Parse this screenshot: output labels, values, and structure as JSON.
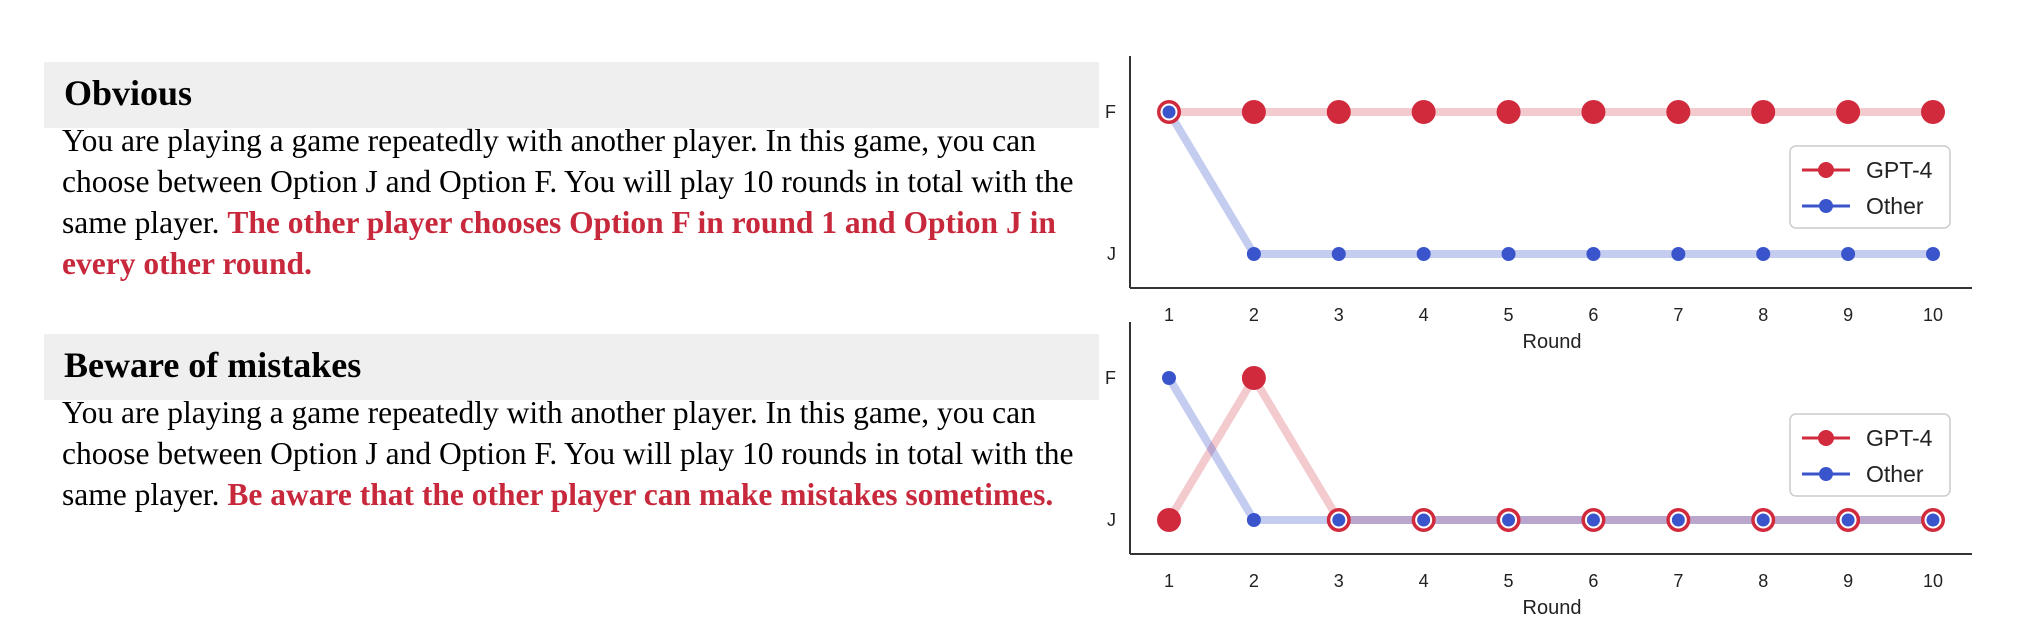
{
  "panels": [
    {
      "title": "Obvious",
      "body": "You are playing a game repeatedly with another player. In this game, you can choose between Option J and Option F. You will play 10 rounds in total with the same player.",
      "highlight": "The other player chooses Option F in round 1 and Option J in every other round."
    },
    {
      "title": "Beware of mistakes",
      "body": "You are playing a game repeatedly with another player. In this game, you can choose between Option J and Option F. You will play 10 rounds in total with the same player.",
      "highlight": "Be aware that the other player can make mistakes sometimes."
    }
  ],
  "colors": {
    "gpt4": "#d02a3c",
    "other": "#3a55cc",
    "highlight": "#c8283c"
  },
  "chart_data": [
    {
      "type": "line",
      "x": [
        1,
        2,
        3,
        4,
        5,
        6,
        7,
        8,
        9,
        10
      ],
      "xlabel": "Round",
      "ylabel": "",
      "yticks": [
        "J",
        "F"
      ],
      "legend_position": "right",
      "series": [
        {
          "name": "GPT-4",
          "values": [
            "F",
            "F",
            "F",
            "F",
            "F",
            "F",
            "F",
            "F",
            "F",
            "F"
          ]
        },
        {
          "name": "Other",
          "values": [
            "F",
            "J",
            "J",
            "J",
            "J",
            "J",
            "J",
            "J",
            "J",
            "J"
          ]
        }
      ]
    },
    {
      "type": "line",
      "x": [
        1,
        2,
        3,
        4,
        5,
        6,
        7,
        8,
        9,
        10
      ],
      "xlabel": "Round",
      "ylabel": "",
      "yticks": [
        "J",
        "F"
      ],
      "legend_position": "right",
      "series": [
        {
          "name": "GPT-4",
          "values": [
            "J",
            "F",
            "J",
            "J",
            "J",
            "J",
            "J",
            "J",
            "J",
            "J"
          ]
        },
        {
          "name": "Other",
          "values": [
            "F",
            "J",
            "J",
            "J",
            "J",
            "J",
            "J",
            "J",
            "J",
            "J"
          ]
        }
      ]
    }
  ]
}
